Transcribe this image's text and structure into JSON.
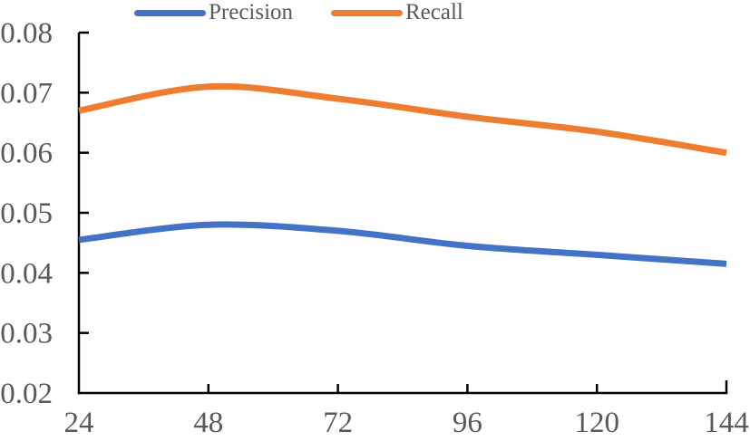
{
  "chart_data": {
    "type": "line",
    "title": "",
    "xlabel": "",
    "ylabel": "",
    "x": [
      24,
      48,
      72,
      96,
      120,
      144
    ],
    "x_tick_labels": [
      "24",
      "48",
      "72",
      "96",
      "120",
      "144"
    ],
    "y_ticks": [
      0.02,
      0.03,
      0.04,
      0.05,
      0.06,
      0.07,
      0.08
    ],
    "y_tick_labels": [
      "0.02",
      "0.03",
      "0.04",
      "0.05",
      "0.06",
      "0.07",
      "0.08"
    ],
    "ylim": [
      0.02,
      0.08
    ],
    "grid": false,
    "legend_position": "top",
    "line_style": "smooth",
    "series": [
      {
        "name": "Precision",
        "color": "#4472C4",
        "values": [
          0.0455,
          0.048,
          0.047,
          0.0445,
          0.043,
          0.0415
        ]
      },
      {
        "name": "Recall",
        "color": "#ED7D31",
        "values": [
          0.067,
          0.071,
          0.069,
          0.066,
          0.0635,
          0.06
        ]
      }
    ],
    "colors": {
      "axis": "#000000",
      "tick_label": "#595959",
      "legend_text": "#595959",
      "background": "#FFFFFF"
    }
  }
}
